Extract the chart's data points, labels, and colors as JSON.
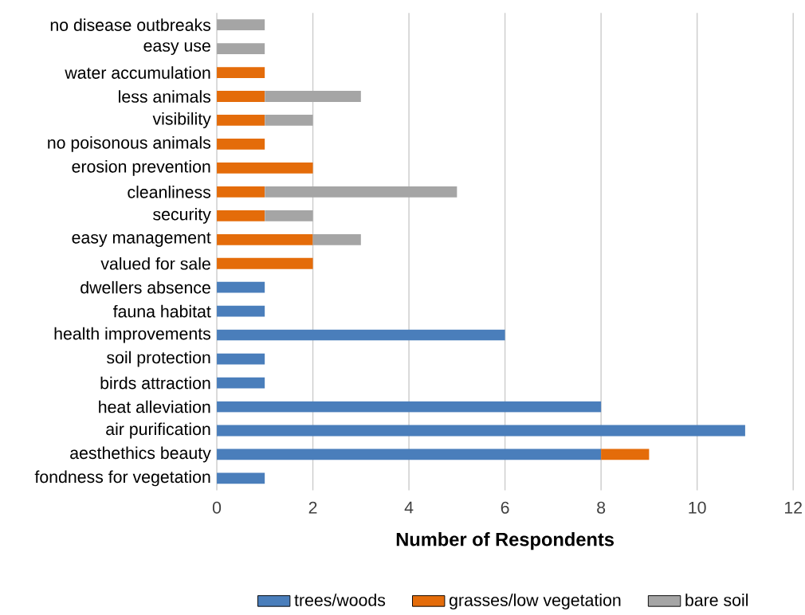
{
  "chart_data": {
    "type": "bar",
    "orientation": "horizontal",
    "stacked": true,
    "categories": [
      "no disease outbreaks",
      "easy use",
      "water accumulation",
      "less animals",
      "visibility",
      "no poisonous animals",
      "erosion prevention",
      "cleanliness",
      "security",
      "easy management",
      "valued for sale",
      "dwellers absence",
      "fauna habitat",
      "health improvements",
      "soil protection",
      "birds attraction",
      "heat alleviation",
      "air purification",
      "aesthethics beauty",
      "fondness for vegetation"
    ],
    "series": [
      {
        "name": "trees/woods",
        "color": "#4a7ebb",
        "values": [
          null,
          null,
          null,
          null,
          null,
          null,
          null,
          null,
          null,
          null,
          null,
          1,
          1,
          6,
          1,
          1,
          8,
          11,
          8,
          1
        ]
      },
      {
        "name": "grasses/low vegetation",
        "color": "#e46c0a",
        "values": [
          null,
          null,
          1,
          1,
          1,
          1,
          2,
          1,
          1,
          2,
          2,
          null,
          null,
          null,
          null,
          null,
          null,
          null,
          1,
          null
        ]
      },
      {
        "name": "bare soil",
        "color": "#a5a5a5",
        "values": [
          1,
          1,
          null,
          2,
          1,
          null,
          null,
          4,
          1,
          1,
          null,
          null,
          null,
          null,
          null,
          null,
          null,
          null,
          null,
          null
        ]
      }
    ],
    "xlabel": "**Number of Respondents**",
    "xlim": [
      0,
      12
    ],
    "xticks": [
      0,
      2,
      4,
      6,
      8,
      10,
      12
    ],
    "grid": "x",
    "legend": "bottom"
  }
}
